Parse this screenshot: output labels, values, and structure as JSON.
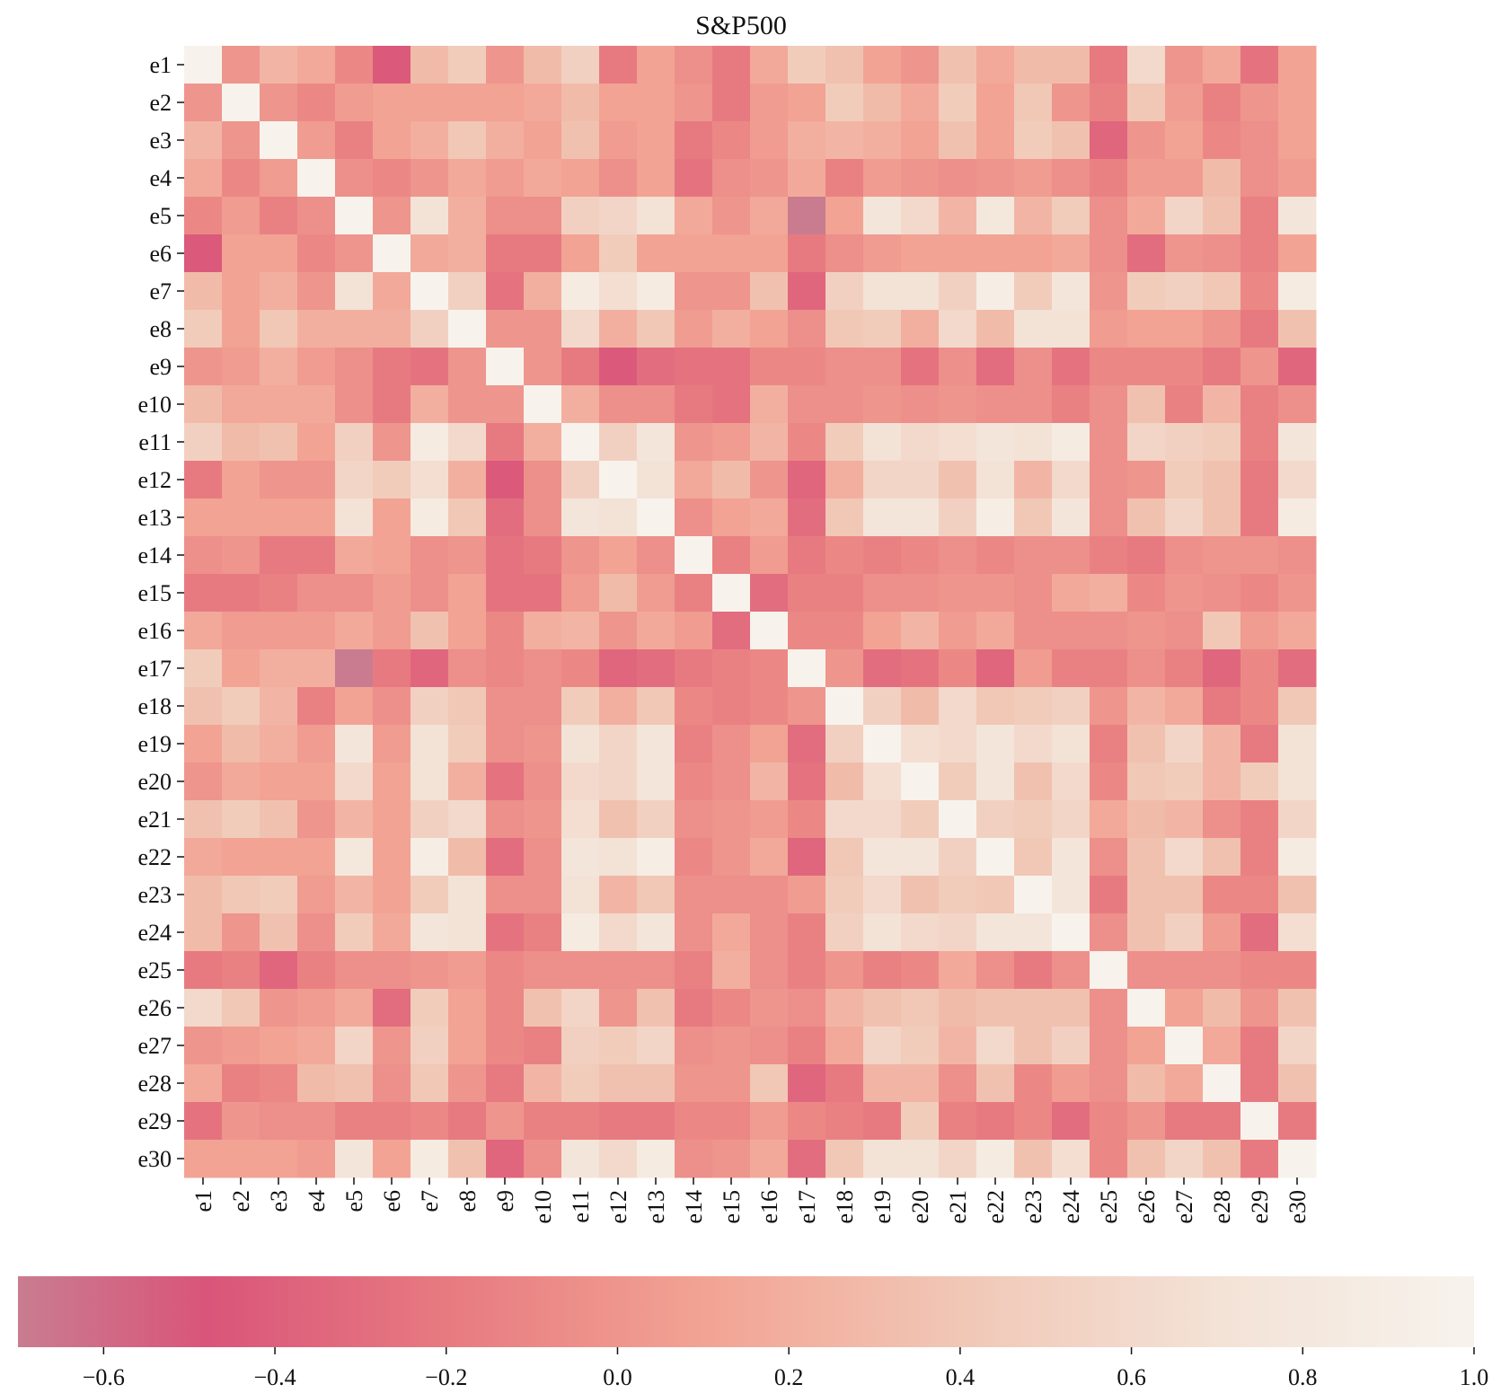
{
  "chart_data": {
    "type": "heatmap",
    "title": "S&P500",
    "xlabel": "",
    "ylabel": "",
    "row_labels": [
      "e1",
      "e2",
      "e3",
      "e4",
      "e5",
      "e6",
      "e7",
      "e8",
      "e9",
      "e10",
      "e11",
      "e12",
      "e13",
      "e14",
      "e15",
      "e16",
      "e17",
      "e18",
      "e19",
      "e20",
      "e21",
      "e22",
      "e23",
      "e24",
      "e25",
      "e26",
      "e27",
      "e28",
      "e29",
      "e30"
    ],
    "col_labels": [
      "e1",
      "e2",
      "e3",
      "e4",
      "e5",
      "e6",
      "e7",
      "e8",
      "e9",
      "e10",
      "e11",
      "e12",
      "e13",
      "e14",
      "e15",
      "e16",
      "e17",
      "e18",
      "e19",
      "e20",
      "e21",
      "e22",
      "e23",
      "e24",
      "e25",
      "e26",
      "e27",
      "e28",
      "e29",
      "e30"
    ],
    "values": [
      [
        1.0,
        0.0,
        0.25,
        0.15,
        -0.1,
        -0.45,
        0.3,
        0.45,
        0.0,
        0.3,
        0.5,
        -0.2,
        0.1,
        -0.05,
        -0.2,
        0.15,
        0.45,
        0.35,
        0.1,
        0.0,
        0.35,
        0.15,
        0.3,
        0.3,
        -0.2,
        0.6,
        0.0,
        0.15,
        -0.25,
        0.1
      ],
      [
        0.0,
        1.0,
        0.0,
        -0.1,
        0.05,
        0.1,
        0.1,
        0.1,
        0.1,
        0.15,
        0.3,
        0.1,
        0.1,
        0.0,
        -0.2,
        0.05,
        0.1,
        0.45,
        0.3,
        0.15,
        0.45,
        0.1,
        0.4,
        0.0,
        -0.15,
        0.4,
        0.05,
        -0.15,
        0.0,
        0.1
      ],
      [
        0.25,
        0.0,
        1.0,
        0.05,
        -0.15,
        0.1,
        0.2,
        0.4,
        0.2,
        0.1,
        0.35,
        0.05,
        0.1,
        -0.2,
        -0.1,
        0.05,
        0.2,
        0.25,
        0.2,
        0.1,
        0.35,
        0.1,
        0.45,
        0.35,
        -0.35,
        0.0,
        0.1,
        -0.1,
        -0.05,
        0.1
      ],
      [
        0.15,
        -0.1,
        0.05,
        1.0,
        -0.05,
        -0.1,
        0.0,
        0.15,
        0.05,
        0.15,
        0.1,
        -0.05,
        0.1,
        -0.25,
        -0.05,
        0.0,
        0.15,
        -0.15,
        0.05,
        0.0,
        -0.05,
        0.0,
        0.05,
        -0.05,
        -0.15,
        0.05,
        0.05,
        0.3,
        -0.05,
        0.05
      ],
      [
        -0.1,
        0.05,
        -0.15,
        -0.05,
        1.0,
        0.0,
        0.7,
        0.2,
        -0.05,
        -0.05,
        0.5,
        0.55,
        0.7,
        0.15,
        0.0,
        0.15,
        -0.7,
        0.1,
        0.75,
        0.6,
        0.25,
        0.8,
        0.25,
        0.45,
        -0.05,
        0.15,
        0.55,
        0.35,
        -0.15,
        0.75
      ],
      [
        -0.45,
        0.1,
        0.1,
        -0.1,
        0.0,
        1.0,
        0.15,
        0.2,
        -0.2,
        -0.2,
        0.1,
        0.45,
        0.1,
        0.1,
        0.1,
        0.1,
        -0.2,
        -0.05,
        0.05,
        0.1,
        0.1,
        0.1,
        0.1,
        0.15,
        -0.05,
        -0.3,
        0.0,
        -0.05,
        -0.15,
        0.1
      ],
      [
        0.3,
        0.1,
        0.2,
        0.0,
        0.7,
        0.15,
        1.0,
        0.5,
        -0.25,
        0.2,
        0.85,
        0.65,
        0.85,
        0.0,
        0.0,
        0.35,
        -0.35,
        0.5,
        0.7,
        0.7,
        0.5,
        0.9,
        0.45,
        0.75,
        0.0,
        0.45,
        0.5,
        0.4,
        -0.1,
        0.85
      ],
      [
        0.45,
        0.1,
        0.4,
        0.2,
        0.2,
        0.2,
        0.5,
        1.0,
        0.0,
        0.0,
        0.6,
        0.2,
        0.4,
        0.05,
        0.2,
        0.1,
        -0.05,
        0.4,
        0.45,
        0.2,
        0.6,
        0.3,
        0.7,
        0.7,
        0.05,
        0.1,
        0.1,
        0.0,
        -0.2,
        0.35
      ],
      [
        0.0,
        0.05,
        0.2,
        0.05,
        -0.05,
        -0.2,
        -0.25,
        0.0,
        1.0,
        0.0,
        -0.2,
        -0.45,
        -0.3,
        -0.25,
        -0.25,
        -0.1,
        -0.1,
        -0.05,
        -0.05,
        -0.25,
        -0.05,
        -0.3,
        -0.05,
        -0.25,
        -0.1,
        -0.1,
        -0.1,
        -0.2,
        0.0,
        -0.35
      ],
      [
        0.3,
        0.15,
        0.15,
        0.15,
        -0.05,
        -0.2,
        0.2,
        0.0,
        0.0,
        1.0,
        0.2,
        -0.05,
        -0.05,
        -0.2,
        -0.25,
        0.2,
        -0.05,
        -0.05,
        0.0,
        -0.05,
        0.0,
        -0.05,
        -0.05,
        -0.15,
        -0.05,
        0.35,
        -0.15,
        0.25,
        -0.15,
        -0.05
      ],
      [
        0.5,
        0.3,
        0.35,
        0.1,
        0.5,
        0.0,
        0.85,
        0.6,
        -0.2,
        0.2,
        1.0,
        0.5,
        0.75,
        0.0,
        0.05,
        0.25,
        -0.1,
        0.45,
        0.7,
        0.6,
        0.65,
        0.75,
        0.7,
        0.85,
        -0.05,
        0.55,
        0.5,
        0.45,
        -0.15,
        0.75
      ],
      [
        -0.2,
        0.1,
        0.0,
        0.0,
        0.55,
        0.45,
        0.65,
        0.2,
        -0.45,
        -0.05,
        0.5,
        1.0,
        0.7,
        0.15,
        0.3,
        0.0,
        -0.35,
        0.2,
        0.55,
        0.55,
        0.35,
        0.7,
        0.25,
        0.6,
        -0.05,
        0.0,
        0.45,
        0.35,
        -0.2,
        0.6
      ],
      [
        0.1,
        0.1,
        0.1,
        0.1,
        0.7,
        0.1,
        0.85,
        0.4,
        -0.3,
        -0.05,
        0.75,
        0.7,
        1.0,
        -0.05,
        0.1,
        0.15,
        -0.3,
        0.4,
        0.75,
        0.75,
        0.5,
        0.9,
        0.4,
        0.75,
        -0.05,
        0.35,
        0.55,
        0.35,
        -0.2,
        0.85
      ],
      [
        -0.05,
        0.0,
        -0.2,
        -0.2,
        0.15,
        0.1,
        -0.05,
        0.0,
        -0.25,
        -0.2,
        0.0,
        0.1,
        -0.05,
        1.0,
        -0.15,
        0.05,
        -0.2,
        -0.1,
        -0.15,
        -0.1,
        -0.05,
        -0.1,
        -0.05,
        -0.05,
        -0.15,
        -0.2,
        -0.05,
        0.0,
        0.0,
        -0.05
      ],
      [
        -0.2,
        -0.2,
        -0.15,
        -0.05,
        -0.05,
        0.05,
        -0.05,
        0.1,
        -0.25,
        -0.25,
        0.05,
        0.3,
        0.05,
        -0.15,
        1.0,
        -0.3,
        -0.15,
        -0.15,
        -0.05,
        -0.05,
        0.0,
        0.0,
        -0.05,
        0.15,
        0.2,
        -0.1,
        0.0,
        -0.05,
        -0.1,
        0.0
      ],
      [
        0.15,
        0.05,
        0.05,
        0.05,
        0.15,
        0.05,
        0.35,
        0.1,
        -0.1,
        0.2,
        0.25,
        0.0,
        0.15,
        0.05,
        -0.3,
        1.0,
        -0.1,
        -0.1,
        0.1,
        0.25,
        0.05,
        0.15,
        -0.05,
        -0.05,
        -0.05,
        0.0,
        -0.05,
        0.4,
        0.05,
        0.15
      ],
      [
        0.45,
        0.1,
        0.2,
        0.2,
        -0.7,
        -0.2,
        -0.35,
        -0.05,
        -0.1,
        -0.05,
        -0.1,
        -0.35,
        -0.3,
        -0.2,
        -0.15,
        -0.1,
        1.0,
        0.0,
        -0.3,
        -0.25,
        -0.1,
        -0.35,
        0.05,
        -0.15,
        -0.15,
        -0.05,
        -0.15,
        -0.35,
        -0.1,
        -0.3
      ],
      [
        0.35,
        0.45,
        0.25,
        -0.15,
        0.1,
        -0.05,
        0.5,
        0.4,
        -0.05,
        -0.05,
        0.45,
        0.2,
        0.4,
        -0.1,
        -0.15,
        -0.1,
        0.0,
        1.0,
        0.5,
        0.3,
        0.6,
        0.4,
        0.45,
        0.5,
        0.0,
        0.25,
        0.15,
        -0.2,
        -0.1,
        0.4
      ],
      [
        0.1,
        0.3,
        0.2,
        0.05,
        0.75,
        0.05,
        0.7,
        0.45,
        -0.05,
        0.0,
        0.7,
        0.55,
        0.75,
        -0.15,
        -0.05,
        0.1,
        -0.3,
        0.5,
        1.0,
        0.65,
        0.6,
        0.75,
        0.6,
        0.7,
        -0.15,
        0.35,
        0.55,
        0.25,
        -0.2,
        0.7
      ],
      [
        0.0,
        0.15,
        0.1,
        0.1,
        0.6,
        0.1,
        0.7,
        0.2,
        -0.25,
        -0.05,
        0.6,
        0.55,
        0.75,
        -0.1,
        -0.05,
        0.25,
        -0.25,
        0.3,
        0.65,
        1.0,
        0.45,
        0.75,
        0.35,
        0.6,
        -0.1,
        0.4,
        0.45,
        0.25,
        0.45,
        0.7
      ],
      [
        0.35,
        0.45,
        0.35,
        0.0,
        0.25,
        0.1,
        0.5,
        0.6,
        -0.05,
        0.0,
        0.65,
        0.35,
        0.5,
        -0.05,
        0.0,
        0.05,
        -0.1,
        0.6,
        0.6,
        0.45,
        1.0,
        0.5,
        0.45,
        0.55,
        0.15,
        0.3,
        0.25,
        -0.05,
        -0.15,
        0.55
      ],
      [
        0.15,
        0.1,
        0.1,
        0.1,
        0.8,
        0.1,
        0.9,
        0.3,
        -0.3,
        -0.05,
        0.75,
        0.7,
        0.9,
        -0.1,
        0.0,
        0.15,
        -0.35,
        0.4,
        0.75,
        0.75,
        0.5,
        1.0,
        0.4,
        0.75,
        -0.05,
        0.35,
        0.6,
        0.35,
        -0.15,
        0.85
      ],
      [
        0.3,
        0.4,
        0.45,
        0.05,
        0.25,
        0.1,
        0.45,
        0.7,
        -0.05,
        -0.05,
        0.7,
        0.25,
        0.4,
        -0.05,
        -0.05,
        -0.05,
        0.05,
        0.45,
        0.6,
        0.35,
        0.45,
        0.4,
        1.0,
        0.75,
        -0.2,
        0.35,
        0.35,
        -0.1,
        -0.1,
        0.35
      ],
      [
        0.3,
        0.0,
        0.35,
        -0.05,
        0.45,
        0.15,
        0.75,
        0.7,
        -0.25,
        -0.15,
        0.85,
        0.6,
        0.75,
        -0.05,
        0.15,
        -0.05,
        -0.15,
        0.5,
        0.7,
        0.6,
        0.55,
        0.75,
        0.75,
        1.0,
        -0.05,
        0.35,
        0.5,
        0.05,
        -0.3,
        0.65
      ],
      [
        -0.2,
        -0.15,
        -0.35,
        -0.15,
        -0.05,
        -0.05,
        0.0,
        0.05,
        -0.1,
        -0.05,
        -0.05,
        -0.05,
        -0.05,
        -0.15,
        0.2,
        -0.05,
        -0.15,
        0.0,
        -0.15,
        -0.1,
        0.15,
        -0.05,
        -0.2,
        -0.05,
        1.0,
        -0.05,
        -0.05,
        -0.05,
        -0.1,
        -0.1
      ],
      [
        0.6,
        0.4,
        0.0,
        0.05,
        0.15,
        -0.3,
        0.45,
        0.1,
        -0.1,
        0.35,
        0.55,
        0.0,
        0.35,
        -0.2,
        -0.1,
        0.0,
        -0.05,
        0.25,
        0.35,
        0.4,
        0.3,
        0.35,
        0.35,
        0.35,
        -0.05,
        1.0,
        0.1,
        0.3,
        0.0,
        0.35
      ],
      [
        0.0,
        0.05,
        0.1,
        0.15,
        0.55,
        0.0,
        0.5,
        0.1,
        -0.1,
        -0.15,
        0.5,
        0.45,
        0.55,
        -0.05,
        0.0,
        -0.05,
        -0.15,
        0.15,
        0.55,
        0.45,
        0.25,
        0.6,
        0.35,
        0.5,
        -0.05,
        0.1,
        1.0,
        0.15,
        -0.2,
        0.55
      ],
      [
        0.15,
        -0.15,
        -0.1,
        0.3,
        0.35,
        -0.05,
        0.4,
        0.0,
        -0.2,
        0.25,
        0.45,
        0.35,
        0.35,
        0.0,
        0.0,
        0.4,
        -0.35,
        -0.2,
        0.25,
        0.25,
        -0.05,
        0.35,
        -0.1,
        0.05,
        -0.05,
        0.3,
        0.15,
        1.0,
        -0.2,
        0.35
      ],
      [
        -0.25,
        0.0,
        -0.05,
        -0.05,
        -0.15,
        -0.15,
        -0.1,
        -0.2,
        0.0,
        -0.15,
        -0.15,
        -0.2,
        -0.2,
        -0.1,
        -0.1,
        0.05,
        -0.1,
        -0.15,
        -0.2,
        0.45,
        -0.15,
        -0.2,
        -0.1,
        -0.3,
        -0.1,
        0.0,
        -0.2,
        -0.2,
        1.0,
        -0.2
      ],
      [
        0.1,
        0.1,
        0.1,
        0.05,
        0.75,
        0.1,
        0.85,
        0.35,
        -0.35,
        -0.05,
        0.75,
        0.6,
        0.85,
        -0.05,
        0.0,
        0.15,
        -0.3,
        0.4,
        0.7,
        0.7,
        0.55,
        0.85,
        0.35,
        0.65,
        -0.1,
        0.35,
        0.55,
        0.35,
        -0.2,
        1.0
      ]
    ],
    "colorbar": {
      "vmin": -0.7,
      "vmax": 1.0,
      "ticks": [
        -0.6,
        -0.4,
        -0.2,
        0.0,
        0.2,
        0.4,
        0.6,
        0.8,
        1.0
      ],
      "tick_labels": [
        "−0.6",
        "−0.4",
        "−0.2",
        "0.0",
        "0.2",
        "0.4",
        "0.6",
        "0.8",
        "1.0"
      ],
      "orientation": "horizontal",
      "placement": "bottom"
    },
    "colormap": [
      {
        "v": -0.7,
        "color": "#c97c90"
      },
      {
        "v": -0.48,
        "color": "#d9557a"
      },
      {
        "v": -0.2,
        "color": "#e77a80"
      },
      {
        "v": 0.1,
        "color": "#f2a393"
      },
      {
        "v": 0.4,
        "color": "#f1c7b6"
      },
      {
        "v": 0.7,
        "color": "#f3e2d6"
      },
      {
        "v": 1.0,
        "color": "#f7f3ec"
      }
    ],
    "grid": false
  }
}
